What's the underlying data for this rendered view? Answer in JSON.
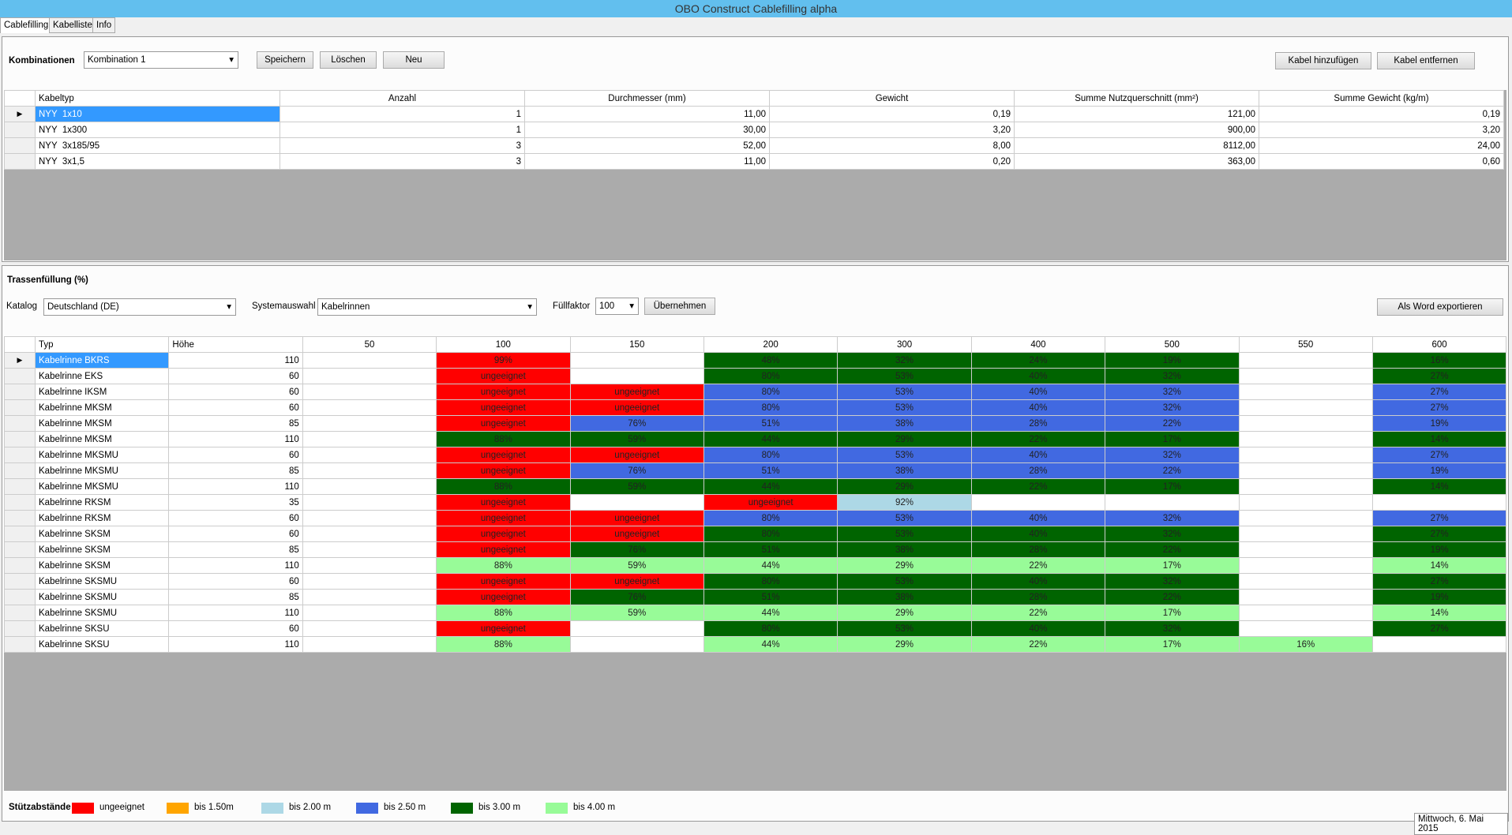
{
  "window": {
    "title": "OBO Construct Cablefilling alpha"
  },
  "tabs": [
    "Cablefilling",
    "Kabelliste",
    "Info"
  ],
  "kombinationen": {
    "label": "Kombinationen",
    "selected": "Kombination 1",
    "buttons": [
      "Speichern",
      "Löschen",
      "Neu"
    ],
    "right_buttons": [
      "Kabel hinzufügen",
      "Kabel entfernen"
    ]
  },
  "cable_table": {
    "columns": [
      "Kabeltyp",
      "Anzahl",
      "Durchmesser (mm)",
      "Gewicht",
      "Summe Nutzquerschnitt (mm²)",
      "Summe Gewicht (kg/m)"
    ],
    "rows": [
      [
        "NYY  1x10",
        "1",
        "11,00",
        "0,19",
        "121,00",
        "0,19"
      ],
      [
        "NYY  1x300",
        "1",
        "30,00",
        "3,20",
        "900,00",
        "3,20"
      ],
      [
        "NYY  3x185/95",
        "3",
        "52,00",
        "8,00",
        "8112,00",
        "24,00"
      ],
      [
        "NYY  3x1,5",
        "3",
        "11,00",
        "0,20",
        "363,00",
        "0,60"
      ]
    ]
  },
  "trassenfuellung": {
    "title": "Trassenfüllung (%)",
    "katalog_label": "Katalog",
    "katalog": "Deutschland (DE)",
    "system_label": "Systemauswahl",
    "system": "Kabelrinnen",
    "fuellfaktor_label": "Füllfaktor",
    "fuellfaktor": "100",
    "apply": "Übernehmen",
    "export": "Als Word exportieren"
  },
  "fill_table": {
    "columns": [
      "Typ",
      "Höhe",
      "50",
      "100",
      "150",
      "200",
      "300",
      "400",
      "500",
      "550",
      "600"
    ],
    "rows": [
      [
        "Kabelrinne BKRS",
        "110",
        null,
        "99%",
        null,
        "48%",
        "32%",
        "24%",
        "19%",
        null,
        "16%"
      ],
      [
        "Kabelrinne EKS",
        "60",
        null,
        "ungeeignet",
        null,
        "80%",
        "53%",
        "40%",
        "32%",
        null,
        "27%"
      ],
      [
        "Kabelrinne IKSM",
        "60",
        null,
        "ungeeignet",
        "ungeeignet",
        "80%",
        "53%",
        "40%",
        "32%",
        null,
        "27%"
      ],
      [
        "Kabelrinne MKSM",
        "60",
        null,
        "ungeeignet",
        "ungeeignet",
        "80%",
        "53%",
        "40%",
        "32%",
        null,
        "27%"
      ],
      [
        "Kabelrinne MKSM",
        "85",
        null,
        "ungeeignet",
        "76%",
        "51%",
        "38%",
        "28%",
        "22%",
        null,
        "19%"
      ],
      [
        "Kabelrinne MKSM",
        "110",
        null,
        "88%",
        "59%",
        "44%",
        "29%",
        "22%",
        "17%",
        null,
        "14%"
      ],
      [
        "Kabelrinne MKSMU",
        "60",
        null,
        "ungeeignet",
        "ungeeignet",
        "80%",
        "53%",
        "40%",
        "32%",
        null,
        "27%"
      ],
      [
        "Kabelrinne MKSMU",
        "85",
        null,
        "ungeeignet",
        "76%",
        "51%",
        "38%",
        "28%",
        "22%",
        null,
        "19%"
      ],
      [
        "Kabelrinne MKSMU",
        "110",
        null,
        "88%",
        "59%",
        "44%",
        "29%",
        "22%",
        "17%",
        null,
        "14%"
      ],
      [
        "Kabelrinne RKSM",
        "35",
        null,
        "ungeeignet",
        null,
        "ungeeignet",
        "92%",
        null,
        null,
        null,
        null
      ],
      [
        "Kabelrinne RKSM",
        "60",
        null,
        "ungeeignet",
        "ungeeignet",
        "80%",
        "53%",
        "40%",
        "32%",
        null,
        "27%"
      ],
      [
        "Kabelrinne SKSM",
        "60",
        null,
        "ungeeignet",
        "ungeeignet",
        "80%",
        "53%",
        "40%",
        "32%",
        null,
        "27%"
      ],
      [
        "Kabelrinne SKSM",
        "85",
        null,
        "ungeeignet",
        "76%",
        "51%",
        "38%",
        "28%",
        "22%",
        null,
        "19%"
      ],
      [
        "Kabelrinne SKSM",
        "110",
        null,
        "88%",
        "59%",
        "44%",
        "29%",
        "22%",
        "17%",
        null,
        "14%"
      ],
      [
        "Kabelrinne SKSMU",
        "60",
        null,
        "ungeeignet",
        "ungeeignet",
        "80%",
        "53%",
        "40%",
        "32%",
        null,
        "27%"
      ],
      [
        "Kabelrinne SKSMU",
        "85",
        null,
        "ungeeignet",
        "76%",
        "51%",
        "38%",
        "28%",
        "22%",
        null,
        "19%"
      ],
      [
        "Kabelrinne SKSMU",
        "110",
        null,
        "88%",
        "59%",
        "44%",
        "29%",
        "22%",
        "17%",
        null,
        "14%"
      ],
      [
        "Kabelrinne SKSU",
        "60",
        null,
        "ungeeignet",
        null,
        "80%",
        "53%",
        "40%",
        "32%",
        null,
        "27%"
      ],
      [
        "Kabelrinne SKSU",
        "110",
        null,
        "88%",
        null,
        "44%",
        "29%",
        "22%",
        "17%",
        "16%",
        null
      ]
    ],
    "colors": [
      [
        null,
        "#ff0000",
        null,
        "#006400",
        "#006400",
        "#006400",
        "#006400",
        null,
        "#006400"
      ],
      [
        null,
        "#ff0000",
        null,
        "#006400",
        "#006400",
        "#006400",
        "#006400",
        null,
        "#006400"
      ],
      [
        null,
        "#ff0000",
        "#ff0000",
        "#4169e1",
        "#4169e1",
        "#4169e1",
        "#4169e1",
        null,
        "#4169e1"
      ],
      [
        null,
        "#ff0000",
        "#ff0000",
        "#4169e1",
        "#4169e1",
        "#4169e1",
        "#4169e1",
        null,
        "#4169e1"
      ],
      [
        null,
        "#ff0000",
        "#4169e1",
        "#4169e1",
        "#4169e1",
        "#4169e1",
        "#4169e1",
        null,
        "#4169e1"
      ],
      [
        null,
        "#006400",
        "#006400",
        "#006400",
        "#006400",
        "#006400",
        "#006400",
        null,
        "#006400"
      ],
      [
        null,
        "#ff0000",
        "#ff0000",
        "#4169e1",
        "#4169e1",
        "#4169e1",
        "#4169e1",
        null,
        "#4169e1"
      ],
      [
        null,
        "#ff0000",
        "#4169e1",
        "#4169e1",
        "#4169e1",
        "#4169e1",
        "#4169e1",
        null,
        "#4169e1"
      ],
      [
        null,
        "#006400",
        "#006400",
        "#006400",
        "#006400",
        "#006400",
        "#006400",
        null,
        "#006400"
      ],
      [
        null,
        "#ff0000",
        null,
        "#ff0000",
        "#add8e6",
        null,
        null,
        null,
        null
      ],
      [
        null,
        "#ff0000",
        "#ff0000",
        "#4169e1",
        "#4169e1",
        "#4169e1",
        "#4169e1",
        null,
        "#4169e1"
      ],
      [
        null,
        "#ff0000",
        "#ff0000",
        "#006400",
        "#006400",
        "#006400",
        "#006400",
        null,
        "#006400"
      ],
      [
        null,
        "#ff0000",
        "#006400",
        "#006400",
        "#006400",
        "#006400",
        "#006400",
        null,
        "#006400"
      ],
      [
        null,
        "#98fb98",
        "#98fb98",
        "#98fb98",
        "#98fb98",
        "#98fb98",
        "#98fb98",
        null,
        "#98fb98"
      ],
      [
        null,
        "#ff0000",
        "#ff0000",
        "#006400",
        "#006400",
        "#006400",
        "#006400",
        null,
        "#006400"
      ],
      [
        null,
        "#ff0000",
        "#006400",
        "#006400",
        "#006400",
        "#006400",
        "#006400",
        null,
        "#006400"
      ],
      [
        null,
        "#98fb98",
        "#98fb98",
        "#98fb98",
        "#98fb98",
        "#98fb98",
        "#98fb98",
        null,
        "#98fb98"
      ],
      [
        null,
        "#ff0000",
        null,
        "#006400",
        "#006400",
        "#006400",
        "#006400",
        null,
        "#006400"
      ],
      [
        null,
        "#98fb98",
        null,
        "#98fb98",
        "#98fb98",
        "#98fb98",
        "#98fb98",
        "#98fb98",
        null
      ]
    ]
  },
  "legend": {
    "title": "Stützabstände",
    "items": [
      {
        "label": "ungeeignet",
        "color": "#ff0000"
      },
      {
        "label": "bis 1.50m",
        "color": "#ffa500"
      },
      {
        "label": "bis 2.00 m",
        "color": "#add8e6"
      },
      {
        "label": "bis 2.50 m",
        "color": "#4169e1"
      },
      {
        "label": "bis 3.00 m",
        "color": "#006400"
      },
      {
        "label": "bis 4.00 m",
        "color": "#98fb98"
      }
    ]
  },
  "status": "Mittwoch, 6. Mai 2015"
}
